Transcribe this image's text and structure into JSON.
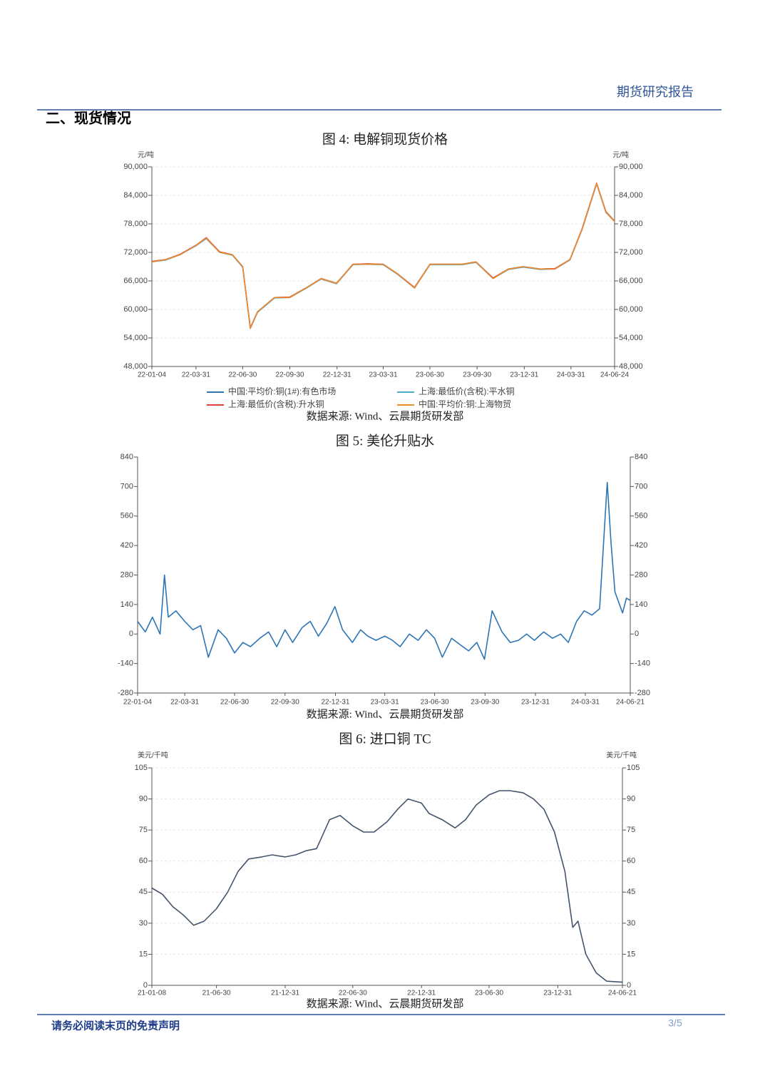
{
  "header": {
    "title": "期货研究报告"
  },
  "section_title": "二、现货情况",
  "chart_data": [
    {
      "type": "line",
      "title": "图 4: 电解铜现货价格",
      "source": "数据来源: Wind、云晨期货研发部",
      "y_unit": "元/吨",
      "y2_unit": "元/吨",
      "x": [
        "22-01-04",
        "22-01-31",
        "22-02-28",
        "22-03-31",
        "22-04-20",
        "22-05-16",
        "22-06-10",
        "22-06-30",
        "22-07-15",
        "22-07-29",
        "22-08-31",
        "22-09-30",
        "22-10-31",
        "22-11-30",
        "22-12-30",
        "23-01-31",
        "23-02-28",
        "23-03-31",
        "23-04-28",
        "23-05-31",
        "23-06-30",
        "23-07-31",
        "23-08-31",
        "23-09-28",
        "23-10-31",
        "23-11-30",
        "23-12-29",
        "24-01-31",
        "24-02-29",
        "24-03-29",
        "24-04-22",
        "24-05-20",
        "24-06-07",
        "24-06-24"
      ],
      "xlim": [
        "22-01-04",
        "24-06-24"
      ],
      "xticks": [
        "22-01-04",
        "22-03-31",
        "22-06-30",
        "22-09-30",
        "22-12-31",
        "23-03-31",
        "23-06-30",
        "23-09-30",
        "23-12-31",
        "24-03-31",
        "24-06-24"
      ],
      "ylim": [
        48000,
        90000
      ],
      "yticks": [
        {
          "value": 48000,
          "label": "48,000"
        },
        {
          "value": 54000,
          "label": "54,000"
        },
        {
          "value": 60000,
          "label": "60,000"
        },
        {
          "value": 66000,
          "label": "66,000"
        },
        {
          "value": 72000,
          "label": "72,000"
        },
        {
          "value": 78000,
          "label": "78,000"
        },
        {
          "value": 84000,
          "label": "84,000"
        },
        {
          "value": 90000,
          "label": "90,000"
        }
      ],
      "y2lim": [
        48000,
        90000
      ],
      "y2ticks": [
        {
          "value": 48000,
          "label": "48,000"
        },
        {
          "value": 54000,
          "label": "54,000"
        },
        {
          "value": 60000,
          "label": "60,000"
        },
        {
          "value": 66000,
          "label": "66,000"
        },
        {
          "value": 72000,
          "label": "72,000"
        },
        {
          "value": 78000,
          "label": "78,000"
        },
        {
          "value": 84000,
          "label": "84,000"
        },
        {
          "value": 90000,
          "label": "90,000"
        }
      ],
      "grid": true,
      "legend": "bottom",
      "series": [
        {
          "name": "中国:平均价:铜(1#):有色市场",
          "color": "#2e75b6",
          "values": [
            70100,
            70500,
            71600,
            73500,
            75000,
            72100,
            71500,
            69000,
            56100,
            59500,
            62500,
            62600,
            64500,
            66500,
            65500,
            69500,
            69600,
            69500,
            67500,
            64600,
            69500,
            69500,
            69500,
            70000,
            66600,
            68500,
            69000,
            68500,
            68600,
            70500,
            77000,
            86500,
            80500,
            78600
          ]
        },
        {
          "name": "上海:最低价(含税):平水铜",
          "color": "#4bacc6",
          "values": [
            70000,
            70400,
            71500,
            73400,
            74900,
            72000,
            71400,
            68900,
            56000,
            59400,
            62400,
            62500,
            64400,
            66400,
            65400,
            69400,
            69500,
            69400,
            67400,
            64500,
            69400,
            69400,
            69400,
            69900,
            66500,
            68400,
            68900,
            68400,
            68500,
            70400,
            76900,
            86400,
            80400,
            78500
          ]
        },
        {
          "name": "上海:最低价(含税):升水铜",
          "color": "#e0403a",
          "values": [
            70100,
            70500,
            71600,
            73500,
            75100,
            72100,
            71500,
            69000,
            56100,
            59500,
            62500,
            62600,
            64500,
            66500,
            65500,
            69500,
            69600,
            69500,
            67500,
            64600,
            69500,
            69500,
            69500,
            70000,
            66600,
            68500,
            69000,
            68500,
            68600,
            70500,
            77100,
            86600,
            80600,
            78600
          ]
        },
        {
          "name": "中国:平均价:铜:上海物贸",
          "color": "#ed8b2f",
          "values": [
            70000,
            70500,
            71500,
            73500,
            75000,
            72000,
            71500,
            69000,
            56000,
            59500,
            62500,
            62500,
            64500,
            66500,
            65500,
            69500,
            69500,
            69500,
            67500,
            64500,
            69500,
            69500,
            69500,
            70000,
            66500,
            68500,
            69000,
            68500,
            68500,
            70500,
            77000,
            86500,
            80500,
            78500
          ]
        }
      ]
    },
    {
      "type": "line",
      "title": "图 5: 美伦升贴水",
      "source": "数据来源: Wind、云晨期货研发部",
      "x": [
        "22-01-04",
        "22-01-18",
        "22-01-31",
        "22-02-14",
        "22-02-22",
        "22-03-01",
        "22-03-15",
        "22-03-31",
        "22-04-15",
        "22-04-29",
        "22-05-13",
        "22-05-31",
        "22-06-15",
        "22-06-30",
        "22-07-15",
        "22-07-29",
        "22-08-15",
        "22-08-31",
        "22-09-15",
        "22-09-30",
        "22-10-14",
        "22-10-31",
        "22-11-15",
        "22-11-30",
        "22-12-15",
        "22-12-30",
        "23-01-13",
        "23-01-31",
        "23-02-15",
        "23-02-28",
        "23-03-15",
        "23-03-31",
        "23-04-14",
        "23-04-28",
        "23-05-15",
        "23-05-31",
        "23-06-15",
        "23-06-30",
        "23-07-14",
        "23-07-31",
        "23-08-15",
        "23-08-31",
        "23-09-15",
        "23-09-29",
        "23-10-13",
        "23-10-31",
        "23-11-15",
        "23-11-30",
        "23-12-15",
        "23-12-29",
        "24-01-15",
        "24-01-31",
        "24-02-15",
        "24-02-29",
        "24-03-15",
        "24-03-29",
        "24-04-12",
        "24-04-26",
        "24-05-10",
        "24-05-17",
        "24-05-24",
        "24-06-07",
        "24-06-14",
        "24-06-21"
      ],
      "xlim": [
        "22-01-04",
        "24-06-21"
      ],
      "xticks": [
        "22-01-04",
        "22-03-31",
        "22-06-30",
        "22-09-30",
        "22-12-31",
        "23-03-31",
        "23-06-30",
        "23-09-30",
        "23-12-31",
        "24-03-31",
        "24-06-21"
      ],
      "ylim": [
        -280,
        840
      ],
      "yticks": [
        -280,
        -140,
        0,
        140,
        280,
        420,
        560,
        700,
        840
      ],
      "y2lim": [
        -280,
        840
      ],
      "y2ticks": [
        -280,
        -140,
        0,
        140,
        280,
        420,
        560,
        700,
        840
      ],
      "grid": false,
      "series": [
        {
          "name": null,
          "color": "#2e75b6",
          "values": [
            60,
            10,
            80,
            0,
            280,
            80,
            110,
            60,
            20,
            40,
            -110,
            20,
            -20,
            -90,
            -40,
            -60,
            -20,
            10,
            -60,
            20,
            -40,
            30,
            60,
            -10,
            50,
            130,
            20,
            -40,
            20,
            -10,
            -30,
            -10,
            -30,
            -60,
            0,
            -30,
            20,
            -20,
            -110,
            -20,
            -50,
            -80,
            -40,
            -120,
            110,
            10,
            -40,
            -30,
            0,
            -30,
            10,
            -20,
            0,
            -40,
            60,
            110,
            90,
            120,
            720,
            430,
            200,
            100,
            170,
            160
          ]
        }
      ]
    },
    {
      "type": "line",
      "title": "图 6: 进口铜 TC",
      "source": "数据来源: Wind、云晨期货研发部",
      "y_unit": "美元/千吨",
      "y2_unit": "美元/千吨",
      "x": [
        "21-01-08",
        "21-02-05",
        "21-03-05",
        "21-04-02",
        "21-04-30",
        "21-05-28",
        "21-06-30",
        "21-07-30",
        "21-08-27",
        "21-09-24",
        "21-10-29",
        "21-11-26",
        "21-12-31",
        "22-01-28",
        "22-02-25",
        "22-03-25",
        "22-04-29",
        "22-05-27",
        "22-06-30",
        "22-07-29",
        "22-08-26",
        "22-09-30",
        "22-10-28",
        "22-11-25",
        "22-12-31",
        "23-01-20",
        "23-02-24",
        "23-03-31",
        "23-04-28",
        "23-05-26",
        "23-06-30",
        "23-07-28",
        "23-08-25",
        "23-09-29",
        "23-10-27",
        "23-11-24",
        "23-12-22",
        "24-01-19",
        "24-02-09",
        "24-02-23",
        "24-03-15",
        "24-04-12",
        "24-05-10",
        "24-06-21"
      ],
      "xlim": [
        "21-01-08",
        "24-06-21"
      ],
      "xticks": [
        "21-01-08",
        "21-06-30",
        "21-12-31",
        "22-06-30",
        "22-12-31",
        "23-06-30",
        "23-12-31",
        "24-06-21"
      ],
      "ylim": [
        0,
        105
      ],
      "yticks": [
        0,
        15,
        30,
        45,
        60,
        75,
        90,
        105
      ],
      "y2lim": [
        0,
        105
      ],
      "y2ticks": [
        0,
        15,
        30,
        45,
        60,
        75,
        90,
        105
      ],
      "grid": true,
      "series": [
        {
          "name": null,
          "color": "#44546a",
          "values": [
            47,
            44,
            38,
            34,
            29,
            31,
            37,
            45,
            55,
            61,
            62,
            63,
            62,
            63,
            65,
            66,
            80,
            82,
            77,
            74,
            74,
            79,
            85,
            90,
            88,
            83,
            80,
            76,
            80,
            87,
            92,
            94,
            94,
            93,
            90,
            85,
            74,
            55,
            28,
            31,
            15,
            6,
            2,
            1.5
          ]
        }
      ]
    }
  ],
  "footer": {
    "disclaimer": "请务必阅读末页的免责声明",
    "page": "3/5"
  }
}
